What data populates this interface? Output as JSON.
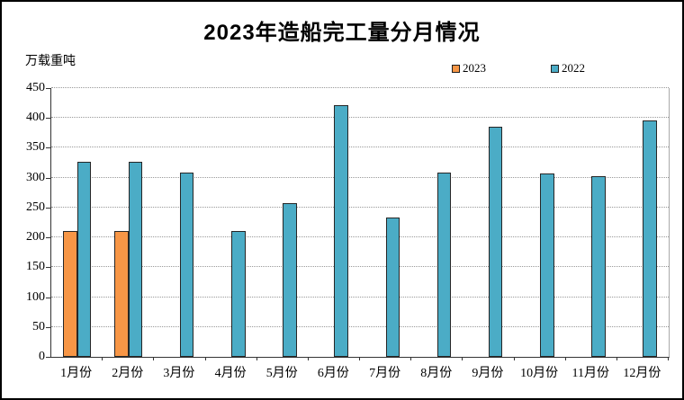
{
  "chart_data": {
    "type": "bar",
    "title": "2023年造船完工量分月情况",
    "unit_label": "万载重吨",
    "categories": [
      "1月份",
      "2月份",
      "3月份",
      "4月份",
      "5月份",
      "6月份",
      "7月份",
      "8月份",
      "9月份",
      "10月份",
      "11月份",
      "12月份"
    ],
    "series": [
      {
        "name": "2023",
        "color": "#F79646",
        "border_color": "#262626",
        "values": [
          211,
          211,
          null,
          null,
          null,
          null,
          null,
          null,
          null,
          null,
          null,
          null
        ]
      },
      {
        "name": "2022",
        "color": "#4BACC6",
        "border_color": "#262626",
        "values": [
          327,
          327,
          308,
          210,
          257,
          421,
          234,
          308,
          386,
          307,
          302,
          396
        ]
      }
    ],
    "ylim": [
      0,
      450
    ],
    "ytick_step": 50,
    "yticks": [
      "0",
      "50",
      "100",
      "150",
      "200",
      "250",
      "300",
      "350",
      "400",
      "450"
    ],
    "grid": "horizontal-dotted",
    "gridline_color": "#999999",
    "axis_color": "#333333",
    "legend_position": "top-right",
    "background_color": "#ffffff",
    "frame_color": "#000000"
  }
}
